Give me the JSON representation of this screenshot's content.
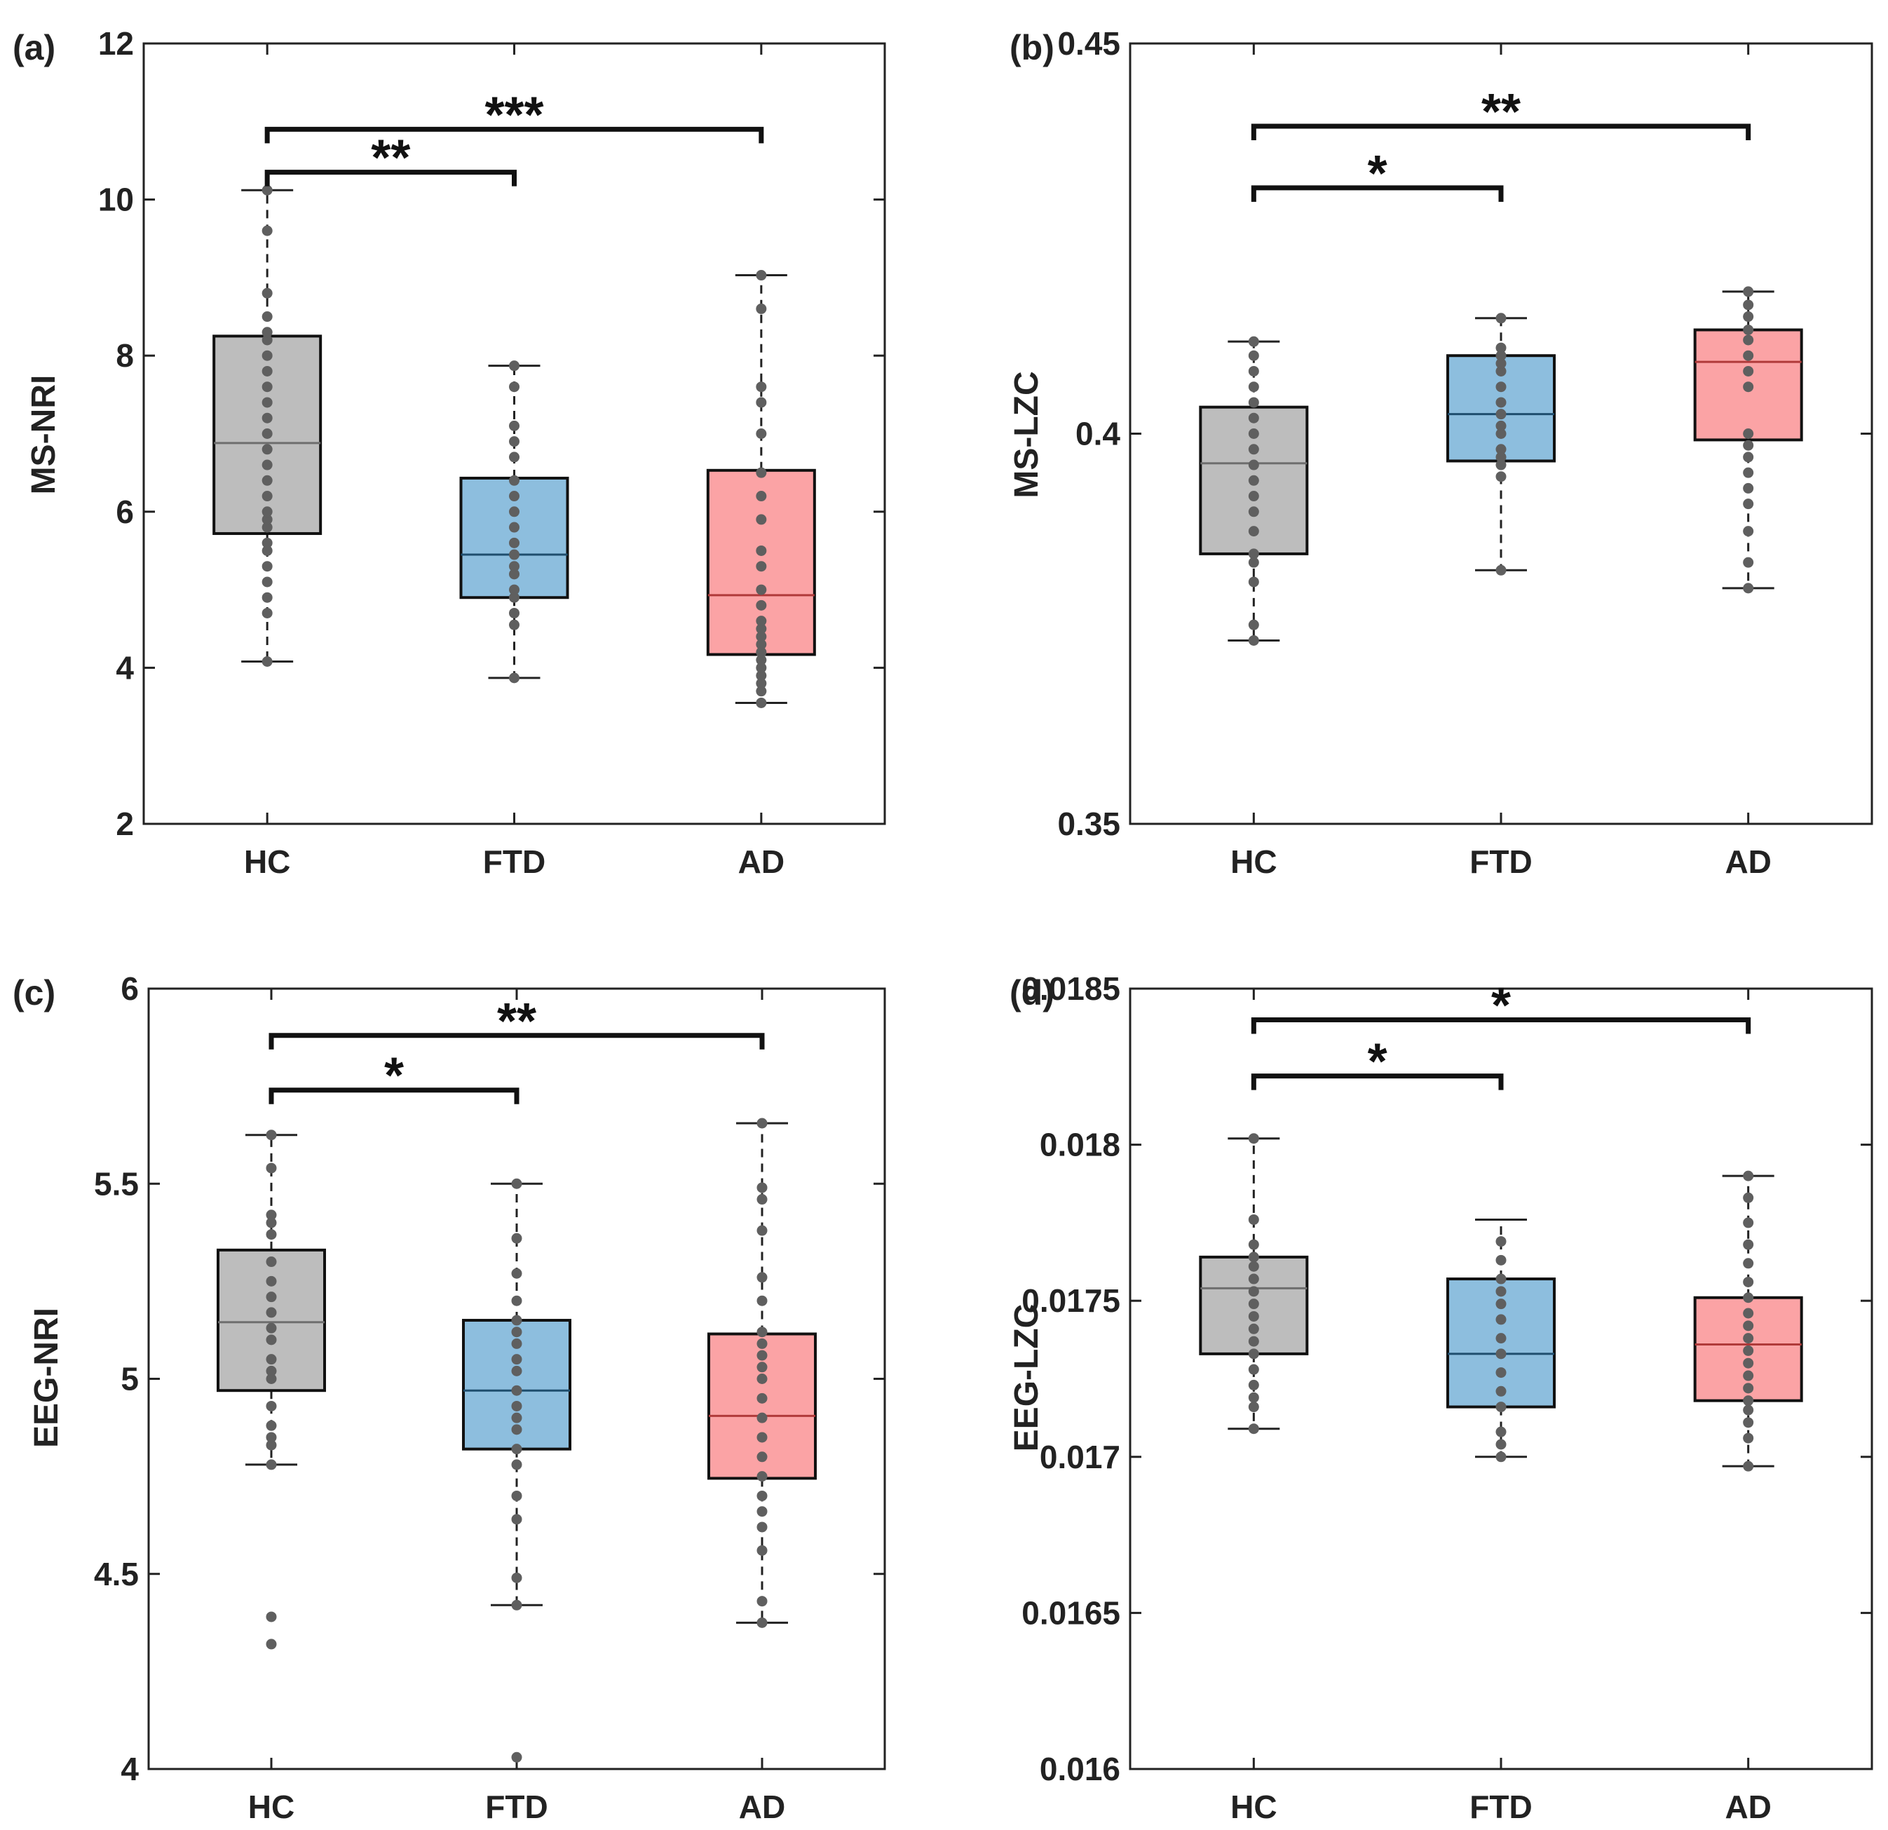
{
  "figure": {
    "description_title": "",
    "style": {
      "box_colors": {
        "HC": "#bdbdbd",
        "FTD": "#8dbede",
        "AD": "#fba3a5"
      },
      "median_colors": {
        "HC": "#6e6e6e",
        "FTD": "#1f4e6e",
        "AD": "#b03a3a"
      },
      "point_color": "#5f5f5f",
      "axis_color": "#222222"
    }
  },
  "chart_data": [
    {
      "type": "box",
      "panel": "(a)",
      "ylabel": "MS-NRI",
      "xlabel": "",
      "categories": [
        "HC",
        "FTD",
        "AD"
      ],
      "ylim": [
        2,
        12
      ],
      "yticks": [
        2,
        4,
        6,
        8,
        10,
        12
      ],
      "ytick_labels": [
        "2",
        "4",
        "6",
        "8",
        "10",
        "12"
      ],
      "boxes": [
        {
          "name": "HC",
          "whisker_low": 4.08,
          "q1": 5.72,
          "median": 6.88,
          "q3": 8.25,
          "whisker_high": 10.12,
          "points": [
            4.08,
            4.7,
            4.9,
            5.1,
            5.3,
            5.5,
            5.6,
            5.8,
            5.9,
            6.0,
            6.2,
            6.4,
            6.6,
            6.8,
            7.0,
            7.2,
            7.4,
            7.6,
            7.8,
            8.0,
            8.2,
            8.3,
            8.5,
            8.8,
            9.6,
            10.12
          ]
        },
        {
          "name": "FTD",
          "whisker_low": 3.87,
          "q1": 4.9,
          "median": 5.45,
          "q3": 6.43,
          "whisker_high": 7.87,
          "points": [
            3.87,
            4.55,
            4.7,
            4.9,
            5.0,
            5.2,
            5.3,
            5.45,
            5.6,
            5.8,
            6.0,
            6.2,
            6.4,
            6.7,
            6.9,
            7.1,
            7.6,
            7.87
          ]
        },
        {
          "name": "AD",
          "whisker_low": 3.55,
          "q1": 4.17,
          "median": 4.93,
          "q3": 6.53,
          "whisker_high": 9.03,
          "points": [
            3.55,
            3.7,
            3.8,
            3.9,
            4.0,
            4.1,
            4.2,
            4.3,
            4.4,
            4.5,
            4.6,
            4.8,
            5.0,
            5.3,
            5.5,
            5.9,
            6.2,
            6.5,
            7.0,
            7.4,
            7.6,
            8.6,
            9.03
          ]
        }
      ],
      "significance": [
        {
          "from": "HC",
          "to": "FTD",
          "y": 10.35,
          "label": "**"
        },
        {
          "from": "HC",
          "to": "AD",
          "y": 10.9,
          "label": "***"
        }
      ]
    },
    {
      "type": "box",
      "panel": "(b)",
      "ylabel": "MS-LZC",
      "xlabel": "",
      "categories": [
        "HC",
        "FTD",
        "AD"
      ],
      "ylim": [
        0.35,
        0.45
      ],
      "yticks": [
        0.35,
        0.4,
        0.45
      ],
      "ytick_labels": [
        "0.35",
        "0.4",
        "0.45"
      ],
      "boxes": [
        {
          "name": "HC",
          "whisker_low": 0.3735,
          "q1": 0.3846,
          "median": 0.3962,
          "q3": 0.4034,
          "whisker_high": 0.4118,
          "points": [
            0.3735,
            0.3755,
            0.381,
            0.3835,
            0.3846,
            0.3875,
            0.39,
            0.392,
            0.394,
            0.396,
            0.398,
            0.4,
            0.402,
            0.404,
            0.406,
            0.408,
            0.41,
            0.4118
          ]
        },
        {
          "name": "FTD",
          "whisker_low": 0.3825,
          "q1": 0.3965,
          "median": 0.4025,
          "q3": 0.41,
          "whisker_high": 0.4148,
          "points": [
            0.3825,
            0.3945,
            0.396,
            0.397,
            0.398,
            0.4,
            0.401,
            0.4025,
            0.404,
            0.406,
            0.408,
            0.409,
            0.41,
            0.411,
            0.4148
          ]
        },
        {
          "name": "AD",
          "whisker_low": 0.3802,
          "q1": 0.3992,
          "median": 0.4092,
          "q3": 0.4133,
          "whisker_high": 0.4182,
          "points": [
            0.3802,
            0.3835,
            0.3875,
            0.391,
            0.393,
            0.395,
            0.397,
            0.3985,
            0.4,
            0.406,
            0.408,
            0.41,
            0.412,
            0.4133,
            0.415,
            0.4165,
            0.4182
          ]
        }
      ],
      "significance": [
        {
          "from": "HC",
          "to": "FTD",
          "y": 0.4315,
          "label": "*"
        },
        {
          "from": "HC",
          "to": "AD",
          "y": 0.4394,
          "label": "**"
        }
      ]
    },
    {
      "type": "box",
      "panel": "(c)",
      "ylabel": "EEG-NRI",
      "xlabel": "",
      "categories": [
        "HC",
        "FTD",
        "AD"
      ],
      "ylim": [
        4,
        6
      ],
      "yticks": [
        4,
        4.5,
        5,
        5.5,
        6
      ],
      "ytick_labels": [
        "4",
        "4.5",
        "5",
        "5.5",
        "6"
      ],
      "boxes": [
        {
          "name": "HC",
          "whisker_low": 4.78,
          "q1": 4.97,
          "median": 5.145,
          "q3": 5.33,
          "whisker_high": 5.625,
          "points": [
            4.32,
            4.39,
            4.78,
            4.83,
            4.85,
            4.88,
            4.93,
            5.0,
            5.02,
            5.05,
            5.1,
            5.13,
            5.17,
            5.21,
            5.25,
            5.3,
            5.37,
            5.4,
            5.42,
            5.54,
            5.625
          ]
        },
        {
          "name": "FTD",
          "whisker_low": 4.42,
          "q1": 4.82,
          "median": 4.97,
          "q3": 5.15,
          "whisker_high": 5.5,
          "points": [
            4.03,
            4.42,
            4.49,
            4.64,
            4.7,
            4.78,
            4.82,
            4.87,
            4.9,
            4.93,
            4.97,
            5.02,
            5.05,
            5.09,
            5.12,
            5.15,
            5.2,
            5.27,
            5.36,
            5.5
          ]
        },
        {
          "name": "AD",
          "whisker_low": 4.375,
          "q1": 4.745,
          "median": 4.905,
          "q3": 5.115,
          "whisker_high": 5.655,
          "points": [
            4.375,
            4.43,
            4.56,
            4.62,
            4.66,
            4.7,
            4.75,
            4.8,
            4.85,
            4.9,
            4.95,
            5.0,
            5.03,
            5.06,
            5.09,
            5.12,
            5.2,
            5.26,
            5.38,
            5.46,
            5.49,
            5.655
          ]
        }
      ],
      "significance": [
        {
          "from": "HC",
          "to": "FTD",
          "y": 5.74,
          "label": "*"
        },
        {
          "from": "HC",
          "to": "AD",
          "y": 5.88,
          "label": "**"
        }
      ]
    },
    {
      "type": "box",
      "panel": "(d)",
      "ylabel": "EEG-LZC",
      "xlabel": "",
      "categories": [
        "HC",
        "FTD",
        "AD"
      ],
      "ylim": [
        0.016,
        0.0185
      ],
      "yticks": [
        0.016,
        0.0165,
        0.017,
        0.0175,
        0.018,
        0.0185
      ],
      "ytick_labels": [
        "0.016",
        "0.0165",
        "0.017",
        "0.0175",
        "0.018",
        "0.0185"
      ],
      "boxes": [
        {
          "name": "HC",
          "whisker_low": 0.01709,
          "q1": 0.01733,
          "median": 0.01754,
          "q3": 0.01764,
          "whisker_high": 0.01802,
          "points": [
            0.01709,
            0.01716,
            0.01719,
            0.01723,
            0.01728,
            0.01733,
            0.01737,
            0.01741,
            0.01745,
            0.01749,
            0.01753,
            0.01757,
            0.01761,
            0.01764,
            0.01768,
            0.01776,
            0.01802
          ]
        },
        {
          "name": "FTD",
          "whisker_low": 0.017,
          "q1": 0.01716,
          "median": 0.01733,
          "q3": 0.01757,
          "whisker_high": 0.01776,
          "points": [
            0.017,
            0.01704,
            0.01708,
            0.01716,
            0.01721,
            0.01727,
            0.01733,
            0.01738,
            0.01744,
            0.01749,
            0.01753,
            0.01757,
            0.01763,
            0.01769
          ]
        },
        {
          "name": "AD",
          "whisker_low": 0.01697,
          "q1": 0.01718,
          "median": 0.01736,
          "q3": 0.01751,
          "whisker_high": 0.0179,
          "points": [
            0.01697,
            0.01706,
            0.01711,
            0.01715,
            0.01718,
            0.01722,
            0.01726,
            0.0173,
            0.01734,
            0.01738,
            0.01742,
            0.01746,
            0.01751,
            0.01756,
            0.01762,
            0.01768,
            0.01775,
            0.01783,
            0.0179
          ]
        }
      ],
      "significance": [
        {
          "from": "HC",
          "to": "FTD",
          "y": 0.01822,
          "label": "*"
        },
        {
          "from": "HC",
          "to": "AD",
          "y": 0.0184,
          "label": "*"
        }
      ]
    }
  ]
}
